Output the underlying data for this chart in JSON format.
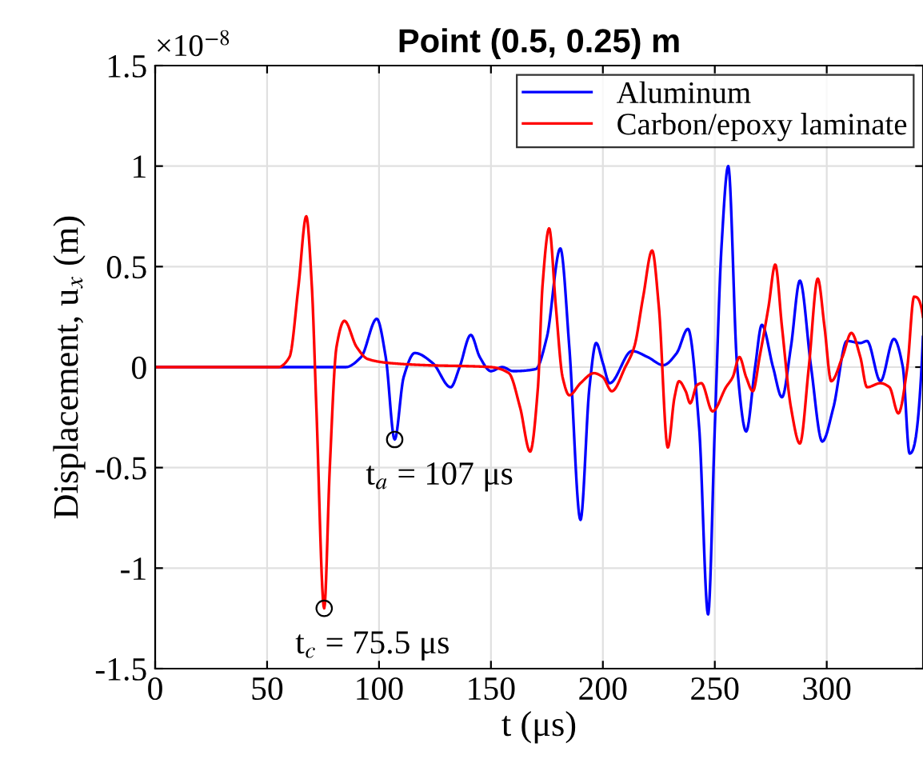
{
  "chart_data": {
    "type": "line",
    "title": "Point (0.5, 0.25) m",
    "xlabel": "t (μs)",
    "ylabel": "Displacement, u$_{x}$ (m)",
    "annotations": [
      "×10$^{−8}$",
      {
        "text": "t$_{a}$ = 107 μs",
        "x": 107,
        "y": -0.36
      },
      {
        "text": "t$_{c}$ = 75.5 μs",
        "x": 75.5,
        "y": -1.2
      }
    ],
    "xlim": [
      0,
      343
    ],
    "xticks": [
      0,
      50,
      100,
      150,
      200,
      250,
      300
    ],
    "ylim": [
      -1.5,
      1.5
    ],
    "yticks": [
      -1.5,
      -1,
      -0.5,
      0,
      0.5,
      1,
      1.5
    ],
    "grid": true,
    "legend": "top right",
    "marker": "none",
    "line_style": "solid",
    "series": [
      {
        "name": "Aluminum",
        "color": "#0000ff",
        "x": [
          0,
          85,
          92,
          99,
          103,
          107,
          111,
          116,
          124,
          132,
          136,
          141,
          145,
          150,
          155,
          160,
          170,
          175,
          181,
          185,
          190,
          194,
          197,
          200,
          203,
          213,
          220,
          227,
          233,
          238,
          243,
          247,
          250,
          253,
          256,
          260,
          264,
          268,
          271,
          276,
          280,
          284,
          288,
          293,
          298,
          303,
          309,
          315,
          318,
          324,
          330,
          334,
          337,
          343
        ],
        "values": [
          0,
          0,
          0.05,
          0.24,
          0.05,
          -0.36,
          -0.05,
          0.07,
          0.02,
          -0.1,
          0,
          0.16,
          0.05,
          -0.02,
          0,
          -0.02,
          -0.01,
          0.15,
          0.59,
          0.1,
          -0.76,
          -0.1,
          0.12,
          0.02,
          -0.08,
          0.08,
          0.05,
          0.01,
          0.07,
          0.19,
          -0.3,
          -1.23,
          -0.3,
          0.6,
          1.0,
          0,
          -0.32,
          0,
          0.21,
          0,
          -0.15,
          0.1,
          0.43,
          0,
          -0.37,
          -0.2,
          0.13,
          0.12,
          0.13,
          -0.07,
          0.14,
          0,
          -0.43,
          0.15
        ]
      },
      {
        "name": "Carbon/epoxy laminate",
        "color": "#ff0000",
        "x": [
          0,
          55,
          60,
          64,
          67.5,
          70,
          72,
          75.5,
          78,
          81,
          84.5,
          90,
          95,
          105,
          120,
          150,
          158,
          163,
          167.5,
          171,
          173,
          176,
          179,
          182,
          185,
          190,
          196,
          200,
          204,
          210,
          214,
          218,
          222,
          225,
          229,
          232,
          234,
          237,
          239,
          242,
          244,
          249,
          255,
          258,
          261,
          264,
          267,
          270,
          274,
          277,
          280,
          284,
          288,
          292,
          296,
          299,
          302,
          307,
          311,
          315,
          318,
          324,
          328,
          332,
          336,
          339,
          343
        ],
        "values": [
          0,
          0,
          0.05,
          0.4,
          0.75,
          0.4,
          -0.2,
          -1.2,
          -0.5,
          0.1,
          0.23,
          0.1,
          0.04,
          0.02,
          0.01,
          0,
          -0.03,
          -0.2,
          -0.42,
          -0.1,
          0.4,
          0.69,
          0.3,
          -0.05,
          -0.14,
          -0.08,
          -0.03,
          -0.05,
          -0.12,
          0,
          0.1,
          0.35,
          0.58,
          0.3,
          -0.4,
          -0.15,
          -0.07,
          -0.12,
          -0.18,
          -0.09,
          -0.08,
          -0.22,
          -0.1,
          -0.05,
          0.05,
          -0.05,
          -0.12,
          0.05,
          0.3,
          0.51,
          0.2,
          -0.2,
          -0.38,
          0,
          0.44,
          0.2,
          -0.07,
          0.05,
          0.17,
          0.05,
          -0.1,
          -0.08,
          -0.1,
          -0.23,
          0,
          0.35,
          0.25
        ]
      }
    ]
  }
}
